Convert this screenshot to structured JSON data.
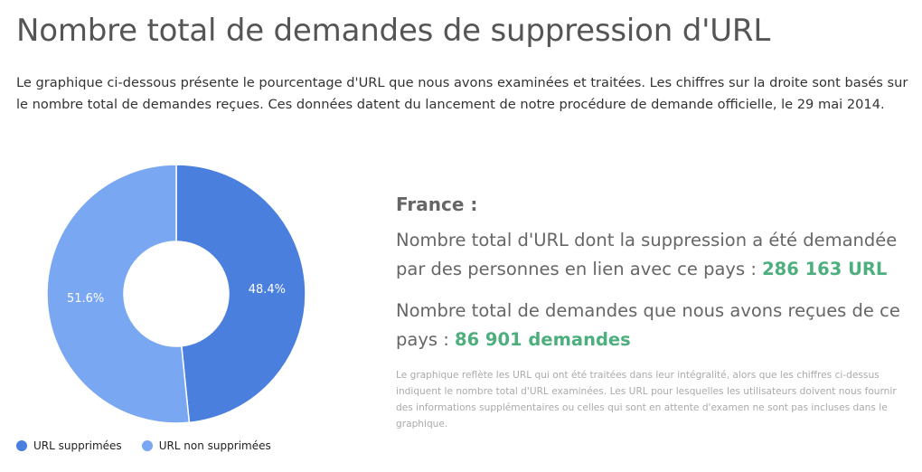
{
  "header": {
    "title": "Nombre total de demandes de suppression d'URL",
    "intro": "Le graphique ci-dessous présente le pourcentage d'URL que nous avons examinées et traitées. Les chiffres sur la droite sont basés sur le nombre total de demandes reçues. Ces données datent du lancement de notre procédure de demande officielle, le 29 mai 2014."
  },
  "chart_data": {
    "type": "pie",
    "donut": true,
    "series": [
      {
        "name": "URL supprimées",
        "value": 48.4,
        "label": "48.4%",
        "color": "#4a7fde"
      },
      {
        "name": "URL non supprimées",
        "value": 51.6,
        "label": "51.6%",
        "color": "#7aa7f2"
      }
    ],
    "legend_position": "bottom-left"
  },
  "panel": {
    "country": "France :",
    "urls_text": "Nombre total d'URL dont la suppression a été demandée par des personnes en lien avec ce pays : ",
    "urls_value": "286 163 URL",
    "requests_text": "Nombre total de demandes que nous avons reçues de ce pays : ",
    "requests_value": "86 901 demandes",
    "note": "Le graphique reflète les URL qui ont été traitées dans leur intégralité, alors que les chiffres ci-dessus indiquent le nombre total d'URL examinées. Les URL pour lesquelles les utilisateurs doivent nous fournir des informations supplémentaires ou celles qui sont en attente d'examen ne sont pas incluses dans le graphique.",
    "value_color": "#4caf7d"
  }
}
